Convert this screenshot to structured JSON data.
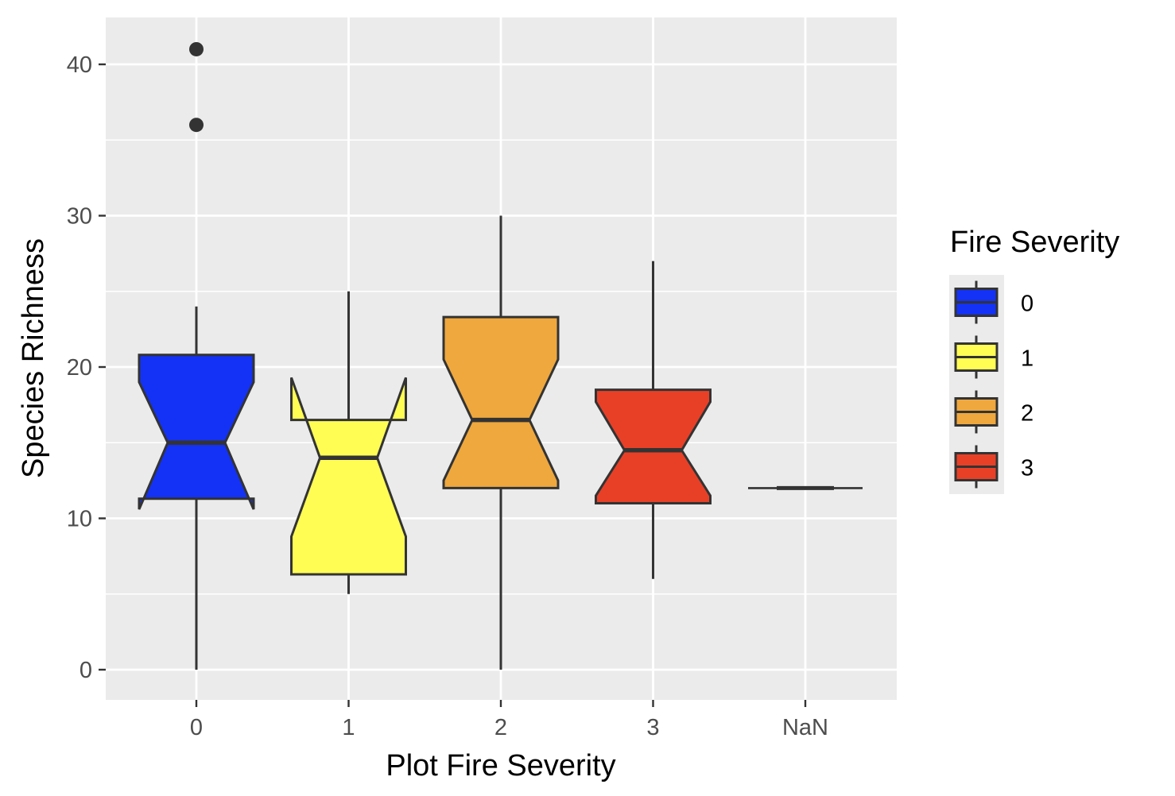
{
  "chart_data": {
    "type": "boxplot",
    "title": "",
    "xlabel": "Plot Fire Severity",
    "ylabel": "Species Richness",
    "ylim": [
      -2,
      43
    ],
    "yticks": [
      0,
      10,
      20,
      30,
      40
    ],
    "notched": true,
    "grid": true,
    "legend_position": "right",
    "legend_title": "Fire Severity",
    "legend_entries": [
      "0",
      "1",
      "2",
      "3"
    ],
    "categories": [
      "0",
      "1",
      "2",
      "3",
      "NaN"
    ],
    "boxes": [
      {
        "category": "0",
        "min": 0,
        "q1": 11.3,
        "median": 15,
        "q3": 20.8,
        "max": 24,
        "notch_low": 10.6,
        "notch_high": 19.0,
        "outliers": [
          36,
          41
        ],
        "fill": "#1432F5"
      },
      {
        "category": "1",
        "min": 5,
        "q1": 6.3,
        "median": 14,
        "q3": 16.5,
        "max": 25,
        "notch_low": 8.8,
        "notch_high": 19.3,
        "outliers": [],
        "fill": "#FFFD54"
      },
      {
        "category": "2",
        "min": 0,
        "q1": 12,
        "median": 16.5,
        "q3": 23.3,
        "max": 30,
        "notch_low": 12.5,
        "notch_high": 20.5,
        "outliers": [],
        "fill": "#EFA83D"
      },
      {
        "category": "3",
        "min": 6,
        "q1": 11,
        "median": 14.5,
        "q3": 18.5,
        "max": 27,
        "notch_low": 11.5,
        "notch_high": 17.7,
        "outliers": [],
        "fill": "#E84027"
      },
      {
        "category": "NaN",
        "min": 12,
        "q1": 12,
        "median": 12,
        "q3": 12,
        "max": 12,
        "notch_low": 12,
        "notch_high": 12,
        "outliers": [],
        "fill": "#808080"
      }
    ]
  }
}
